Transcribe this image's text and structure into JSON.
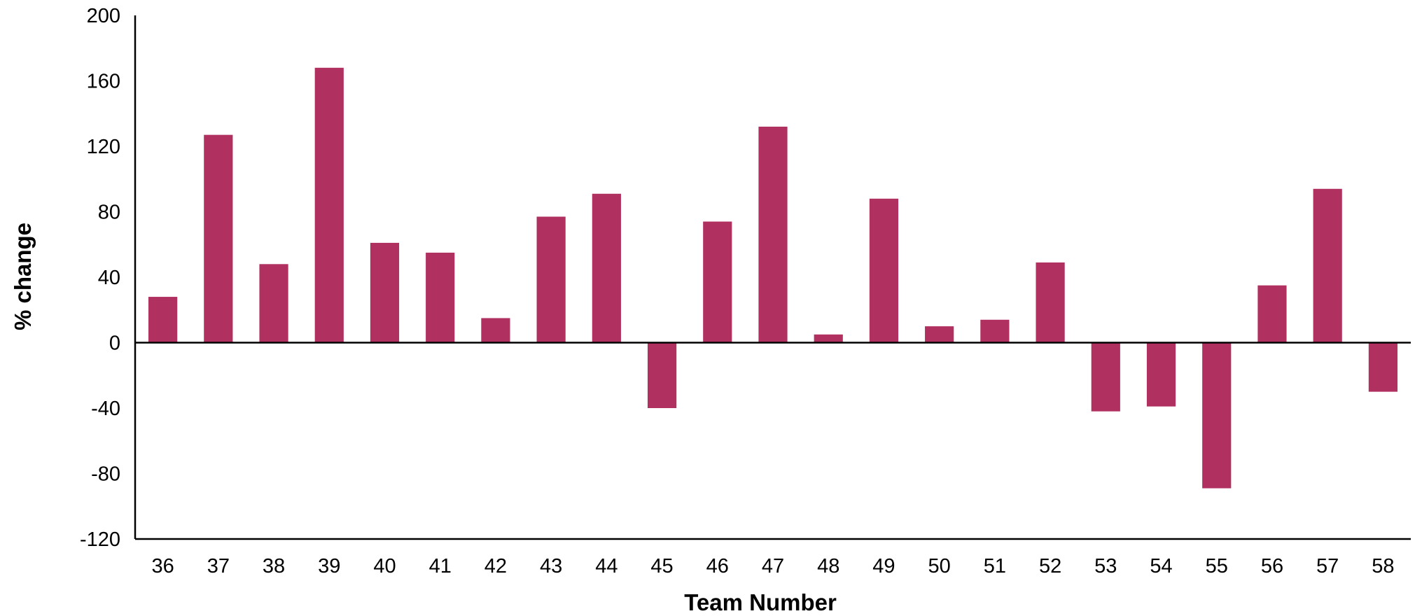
{
  "chart_data": {
    "type": "bar",
    "title": "",
    "xlabel": "Team Number",
    "ylabel": "% change",
    "ylim": [
      -120,
      200
    ],
    "yticks": [
      200,
      160,
      120,
      80,
      40,
      0,
      -40,
      -80,
      -120
    ],
    "grid": false,
    "legend": "none",
    "bar_color": "#B03060",
    "categories": [
      "36",
      "37",
      "38",
      "39",
      "40",
      "41",
      "42",
      "43",
      "44",
      "45",
      "46",
      "47",
      "48",
      "49",
      "50",
      "51",
      "52",
      "53",
      "54",
      "55",
      "56",
      "57",
      "58"
    ],
    "values": [
      28,
      127,
      48,
      168,
      61,
      55,
      15,
      77,
      91,
      -40,
      74,
      132,
      5,
      88,
      10,
      14,
      49,
      -42,
      -39,
      -89,
      35,
      94,
      -30
    ]
  }
}
